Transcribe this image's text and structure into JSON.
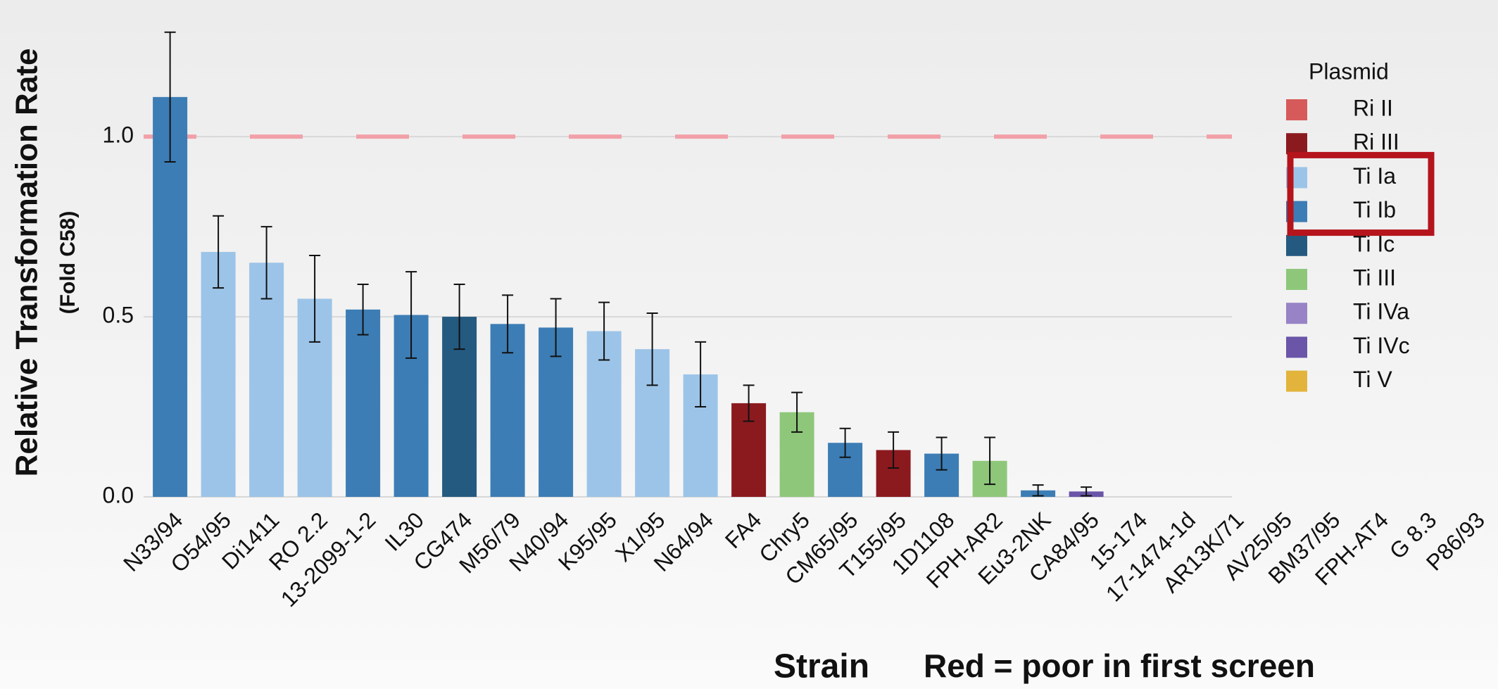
{
  "chart_data": {
    "type": "bar",
    "ylabel": "Relative Transformation Rate",
    "ylabel_sub": "(Fold C58)",
    "xlabel": "Strain",
    "annotation": "Red = poor in first screen",
    "annotation_color": "#b5232e",
    "categories": [
      "N33/94",
      "O54/95",
      "Di1411",
      "RO 2.2",
      "13-2099-1-2",
      "IL30",
      "CG474",
      "M56/79",
      "N40/94",
      "K95/95",
      "X1/95",
      "N64/94",
      "FA4",
      "Chry5",
      "CM65/95",
      "T155/95",
      "1D1108",
      "FPH-AR2",
      "Eu3-2NK",
      "CA84/95",
      "15-174",
      "17-1474-1d",
      "AR13K/71",
      "AV25/95",
      "BM37/95",
      "FPH-AT4",
      "G 8.3",
      "P86/93"
    ],
    "values": [
      1.11,
      0.68,
      0.65,
      0.55,
      0.52,
      0.505,
      0.5,
      0.48,
      0.47,
      0.46,
      0.41,
      0.34,
      0.26,
      0.235,
      0.15,
      0.13,
      0.12,
      0.1,
      0.018,
      0.015,
      null,
      null,
      null,
      null,
      null,
      null,
      null,
      null
    ],
    "errors": [
      0.18,
      0.1,
      0.1,
      0.12,
      0.07,
      0.12,
      0.09,
      0.08,
      0.08,
      0.08,
      0.1,
      0.09,
      0.05,
      0.055,
      0.04,
      0.05,
      0.045,
      0.065,
      0.015,
      0.012,
      null,
      null,
      null,
      null,
      null,
      null,
      null,
      null
    ],
    "groups": [
      "Ti Ib",
      "Ti Ia",
      "Ti Ia",
      "Ti Ia",
      "Ti Ib",
      "Ti Ib",
      "Ti Ic",
      "Ti Ib",
      "Ti Ib",
      "Ti Ia",
      "Ti Ia",
      "Ti Ia",
      "Ri III",
      "Ti III",
      "Ti Ib",
      "Ri III",
      "Ti Ib",
      "Ti III",
      "Ti Ib",
      "Ti IVc",
      null,
      null,
      null,
      null,
      null,
      null,
      null,
      null
    ],
    "label_colors": [
      "#111",
      "#111",
      "#111",
      "#111",
      "#111",
      "#111",
      "#111",
      "#111",
      "#111",
      "#111",
      "#111",
      "#111",
      "#111",
      "#111",
      "#111",
      "#b5232e",
      "#111",
      "#b5232e",
      "#b5232e",
      "#b5232e",
      "#b5232e",
      "#b5232e",
      "#b5232e",
      "#111",
      "#111",
      "#111",
      "#b5232e",
      "#b5232e"
    ],
    "ylim": [
      0,
      1.35
    ],
    "yticks": [
      {
        "value": 0,
        "label": "0.0"
      },
      0.5,
      {
        "value": 1,
        "label": "1.0"
      }
    ],
    "reference_line": {
      "value": 1,
      "color": "#f2a0a8"
    },
    "legend": {
      "title": "Plasmid",
      "position": "right",
      "items": [
        {
          "name": "Ri II",
          "color": "#d65a5a"
        },
        {
          "name": "Ri III",
          "color": "#8b1a1f"
        },
        {
          "name": "Ti Ia",
          "color": "#9cc4e8"
        },
        {
          "name": "Ti Ib",
          "color": "#3d7db5"
        },
        {
          "name": "Ti Ic",
          "color": "#255a80"
        },
        {
          "name": "Ti III",
          "color": "#8ec77a"
        },
        {
          "name": "Ti IVa",
          "color": "#9783c6"
        },
        {
          "name": "Ti IVc",
          "color": "#6a55a8"
        },
        {
          "name": "Ti V",
          "color": "#e2b43c"
        }
      ],
      "highlight": [
        2,
        3
      ],
      "highlight_color": "#b5141c"
    }
  }
}
